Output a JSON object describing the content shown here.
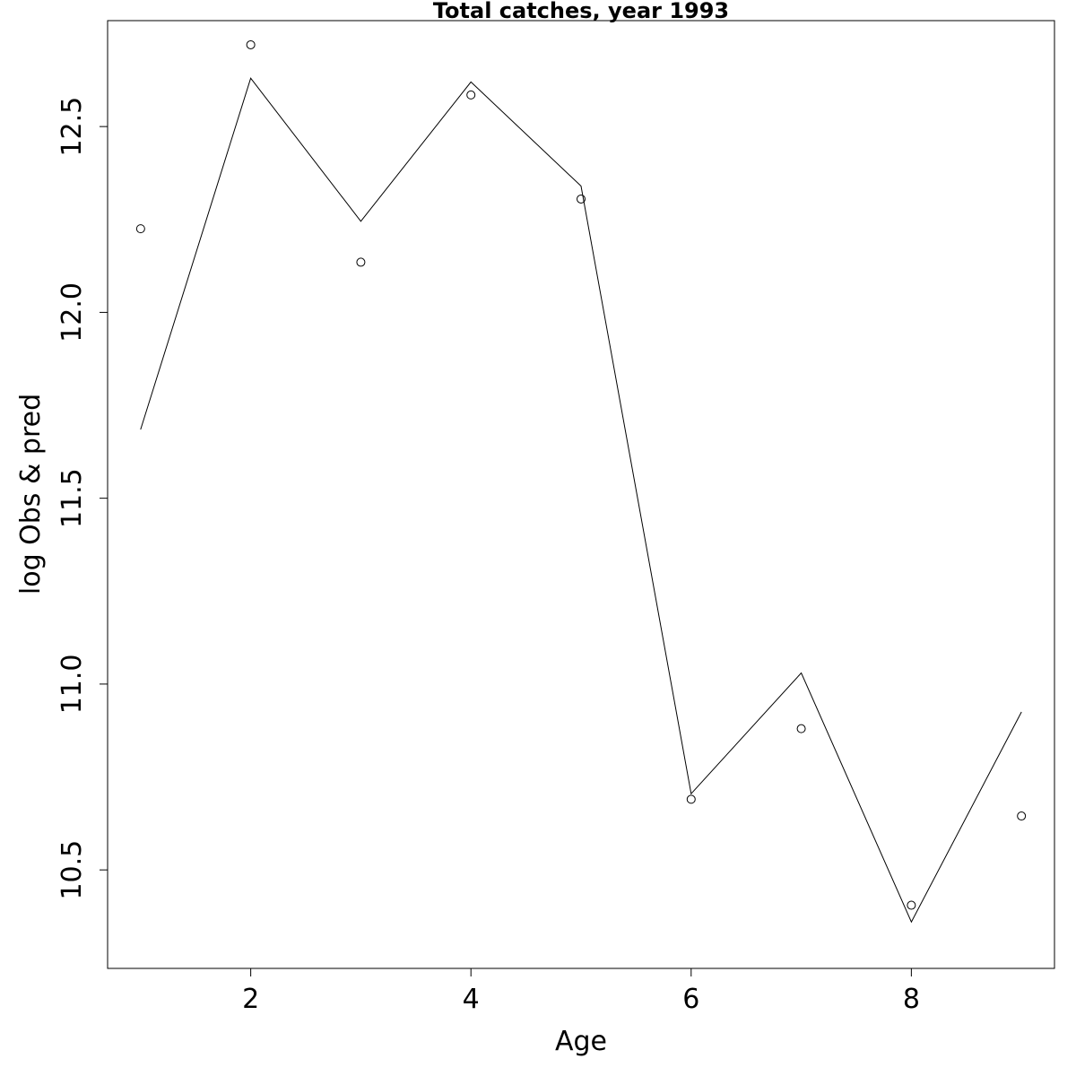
{
  "chart_data": {
    "type": "line",
    "title": "Total catches, year 1993",
    "xlabel": "Age",
    "ylabel": "log Obs & pred",
    "xlim": [
      0.7,
      9.3
    ],
    "ylim": [
      10.235,
      12.785
    ],
    "x_ticks": [
      2,
      4,
      6,
      8
    ],
    "y_ticks": [
      10.5,
      11.0,
      11.5,
      12.0,
      12.5
    ],
    "x_tick_labels": [
      "2",
      "4",
      "6",
      "8"
    ],
    "y_tick_labels": [
      "10.5",
      "11.0",
      "11.5",
      "12.0",
      "12.5"
    ],
    "grid": false,
    "legend": "none",
    "series": [
      {
        "style": "points",
        "x": [
          1,
          2,
          3,
          4,
          5,
          6,
          7,
          8,
          9
        ],
        "y": [
          12.225,
          12.72,
          12.135,
          12.585,
          12.305,
          10.69,
          10.88,
          10.405,
          10.645
        ]
      },
      {
        "style": "line",
        "x": [
          1,
          2,
          3,
          4,
          5,
          6,
          7,
          8,
          9
        ],
        "y": [
          11.685,
          12.63,
          12.245,
          12.62,
          12.34,
          10.705,
          11.03,
          10.36,
          10.925
        ]
      }
    ]
  }
}
